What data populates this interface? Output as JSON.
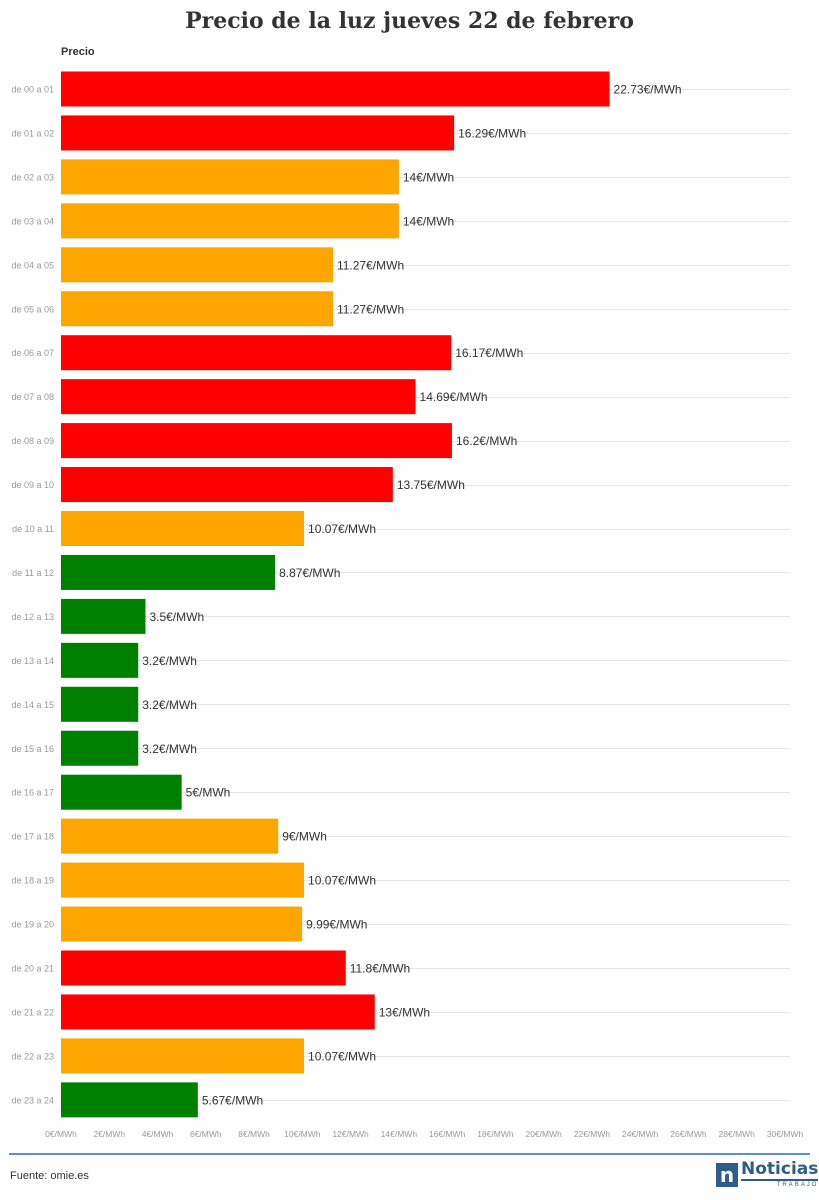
{
  "header": {
    "title": "Precio de la luz jueves 22 de febrero",
    "series_label": "Precio"
  },
  "colors": {
    "high": "#ff0000",
    "medium": "#ffa500",
    "low": "#008000",
    "grid": "#e6e6e6",
    "axis_text": "#999999",
    "value_text": "#333333"
  },
  "chart_data": {
    "type": "bar",
    "orientation": "horizontal",
    "title": "Precio de la luz jueves 22 de febrero",
    "series_label": "Precio",
    "unit_suffix": "€/MWh",
    "xlim": [
      0,
      30
    ],
    "x_ticks": [
      0,
      2,
      4,
      6,
      8,
      10,
      12,
      14,
      16,
      18,
      20,
      22,
      24,
      26,
      28,
      30
    ],
    "x_tick_labels": [
      "0€/MWh",
      "2€/MWh",
      "4€/MWh",
      "6€/MWh",
      "8€/MWh",
      "10€/MWh",
      "12€/MWh",
      "14€/MWh",
      "16€/MWh",
      "18€/MWh",
      "20€/MWh",
      "22€/MWh",
      "24€/MWh",
      "26€/MWh",
      "28€/MWh",
      "30€/MWh"
    ],
    "grid": true,
    "categories": [
      "de 00 a 01",
      "de 01 a 02",
      "de 02 a 03",
      "de 03 a 04",
      "de 04 a 05",
      "de 05 a 06",
      "de 06 a 07",
      "de 07 a 08",
      "de 08 a 09",
      "de 09 a 10",
      "de 10 a 11",
      "de 11 a 12",
      "de 12 a 13",
      "de 13 a 14",
      "de 14 a 15",
      "de 15 a 16",
      "de 16 a 17",
      "de 17 a 18",
      "de 18 a 19",
      "de 19 a 20",
      "de 20 a 21",
      "de 21 a 22",
      "de 22 a 23",
      "de 23 a 24"
    ],
    "values": [
      22.73,
      16.29,
      14,
      14,
      11.27,
      11.27,
      16.17,
      14.69,
      16.2,
      13.75,
      10.07,
      8.87,
      3.5,
      3.2,
      3.2,
      3.2,
      5,
      9,
      10.07,
      9.99,
      11.8,
      13,
      10.07,
      5.67
    ],
    "value_labels": [
      "22.73€/MWh",
      "16.29€/MWh",
      "14€/MWh",
      "14€/MWh",
      "11.27€/MWh",
      "11.27€/MWh",
      "16.17€/MWh",
      "14.69€/MWh",
      "16.2€/MWh",
      "13.75€/MWh",
      "10.07€/MWh",
      "8.87€/MWh",
      "3.5€/MWh",
      "3.2€/MWh",
      "3.2€/MWh",
      "3.2€/MWh",
      "5€/MWh",
      "9€/MWh",
      "10.07€/MWh",
      "9.99€/MWh",
      "11.8€/MWh",
      "13€/MWh",
      "10.07€/MWh",
      "5.67€/MWh"
    ],
    "levels": [
      "high",
      "high",
      "medium",
      "medium",
      "medium",
      "medium",
      "high",
      "high",
      "high",
      "high",
      "medium",
      "low",
      "low",
      "low",
      "low",
      "low",
      "low",
      "medium",
      "medium",
      "medium",
      "high",
      "high",
      "medium",
      "low"
    ]
  },
  "footer": {
    "source": "Fuente: omie.es",
    "logo_mark": "n",
    "logo_word": "Noticias",
    "logo_sub": "TRABAJO"
  }
}
